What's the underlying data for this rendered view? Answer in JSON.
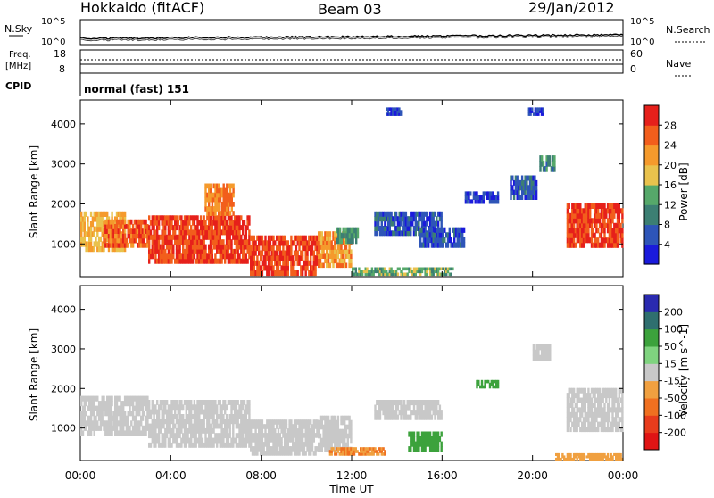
{
  "header": {
    "station": "Hokkaido (fitACF)",
    "beam": "Beam 03",
    "date": "29/Jan/2012"
  },
  "noise_panel": {
    "left_label": "N.Sky",
    "right_label": "N.Search",
    "tick_top": "10^5",
    "tick_bottom": "10^0",
    "right_tick_top": "10^5",
    "right_tick_bottom": "10^0"
  },
  "freq_panel": {
    "left_label_1": "Freq.",
    "left_label_2": "[MHz]",
    "right_label": "Nave",
    "left_ticks": [
      "18",
      "8"
    ],
    "right_ticks": [
      "60",
      "0"
    ]
  },
  "cpid": {
    "label": "CPID",
    "text": "normal (fast) 151"
  },
  "x_axis": {
    "label": "Time UT",
    "tick_labels": [
      "00:00",
      "04:00",
      "08:00",
      "12:00",
      "16:00",
      "20:00",
      "00:00"
    ]
  },
  "chart_data": [
    {
      "type": "heatmap",
      "quantity": "power",
      "xlabel": "Time UT",
      "ylabel": "Slant Range [km]",
      "xlim_hours": [
        0,
        24
      ],
      "y_ticks": [
        1000,
        2000,
        3000,
        4000
      ],
      "ylim": [
        180,
        4600
      ],
      "colorbar": {
        "label": "Power [dB]",
        "ticks": [
          "4",
          "8",
          "12",
          "16",
          "20",
          "24",
          "28"
        ],
        "colors": [
          "#1a1adc",
          "#2e55b8",
          "#3c7f73",
          "#56a86a",
          "#e9c24d",
          "#f59a2c",
          "#f25e1c",
          "#e6201b"
        ]
      },
      "regions": [
        {
          "t": [
            0.0,
            2.0
          ],
          "r": [
            800,
            1800
          ],
          "value": 20
        },
        {
          "t": [
            1.0,
            3.0
          ],
          "r": [
            900,
            1600
          ],
          "value": 26
        },
        {
          "t": [
            3.0,
            7.5
          ],
          "r": [
            500,
            1700
          ],
          "value": 28
        },
        {
          "t": [
            5.5,
            6.8
          ],
          "r": [
            1700,
            2500
          ],
          "value": 24
        },
        {
          "t": [
            7.5,
            10.5
          ],
          "r": [
            200,
            1200
          ],
          "value": 28
        },
        {
          "t": [
            10.5,
            12.0
          ],
          "r": [
            400,
            1300
          ],
          "value": 22
        },
        {
          "t": [
            11.3,
            12.3
          ],
          "r": [
            1000,
            1400
          ],
          "value": 12
        },
        {
          "t": [
            13.0,
            16.0
          ],
          "r": [
            1200,
            1800
          ],
          "value": 6
        },
        {
          "t": [
            15.0,
            17.0
          ],
          "r": [
            900,
            1400
          ],
          "value": 5
        },
        {
          "t": [
            12.0,
            16.5
          ],
          "r": [
            200,
            400
          ],
          "value": 14
        },
        {
          "t": [
            17.0,
            18.5
          ],
          "r": [
            2000,
            2300
          ],
          "value": 4
        },
        {
          "t": [
            19.0,
            20.2
          ],
          "r": [
            2100,
            2700
          ],
          "value": 6
        },
        {
          "t": [
            20.3,
            21.0
          ],
          "r": [
            2800,
            3200
          ],
          "value": 10
        },
        {
          "t": [
            21.5,
            24.0
          ],
          "r": [
            900,
            2000
          ],
          "value": 28
        },
        {
          "t": [
            13.5,
            14.2
          ],
          "r": [
            4200,
            4400
          ],
          "value": 4
        },
        {
          "t": [
            19.8,
            20.5
          ],
          "r": [
            4200,
            4400
          ],
          "value": 4
        }
      ]
    },
    {
      "type": "heatmap",
      "quantity": "velocity",
      "xlabel": "Time UT",
      "ylabel": "Slant Range [km]",
      "xlim_hours": [
        0,
        24
      ],
      "y_ticks": [
        1000,
        2000,
        3000,
        4000
      ],
      "ylim": [
        180,
        4600
      ],
      "colorbar": {
        "label": "Velocity [m s^-1]",
        "ticks": [
          "200",
          "100",
          "50",
          "15",
          "-15",
          "-50",
          "-100",
          "-200"
        ],
        "colors": [
          "#2a2ab0",
          "#2f6f6f",
          "#3ca23c",
          "#7fd37f",
          "#c8c8c8",
          "#f0a040",
          "#f07020",
          "#e83c1c",
          "#e01414"
        ]
      },
      "regions": [
        {
          "t": [
            0.0,
            3.0
          ],
          "r": [
            800,
            1800
          ],
          "value": 0
        },
        {
          "t": [
            3.0,
            7.5
          ],
          "r": [
            500,
            1700
          ],
          "value": 0
        },
        {
          "t": [
            7.5,
            10.5
          ],
          "r": [
            300,
            1200
          ],
          "value": 0
        },
        {
          "t": [
            10.5,
            12.0
          ],
          "r": [
            400,
            1300
          ],
          "value": 0
        },
        {
          "t": [
            11.0,
            13.5
          ],
          "r": [
            300,
            500
          ],
          "value": -50
        },
        {
          "t": [
            13.0,
            16.0
          ],
          "r": [
            1200,
            1700
          ],
          "value": 0
        },
        {
          "t": [
            14.5,
            16.0
          ],
          "r": [
            400,
            900
          ],
          "value": 50
        },
        {
          "t": [
            17.5,
            18.5
          ],
          "r": [
            2000,
            2200
          ],
          "value": 50
        },
        {
          "t": [
            20.0,
            20.8
          ],
          "r": [
            2700,
            3100
          ],
          "value": 10
        },
        {
          "t": [
            21.5,
            24.0
          ],
          "r": [
            900,
            2000
          ],
          "value": 0
        },
        {
          "t": [
            21.0,
            24.0
          ],
          "r": [
            180,
            350
          ],
          "value": -30
        }
      ]
    }
  ]
}
